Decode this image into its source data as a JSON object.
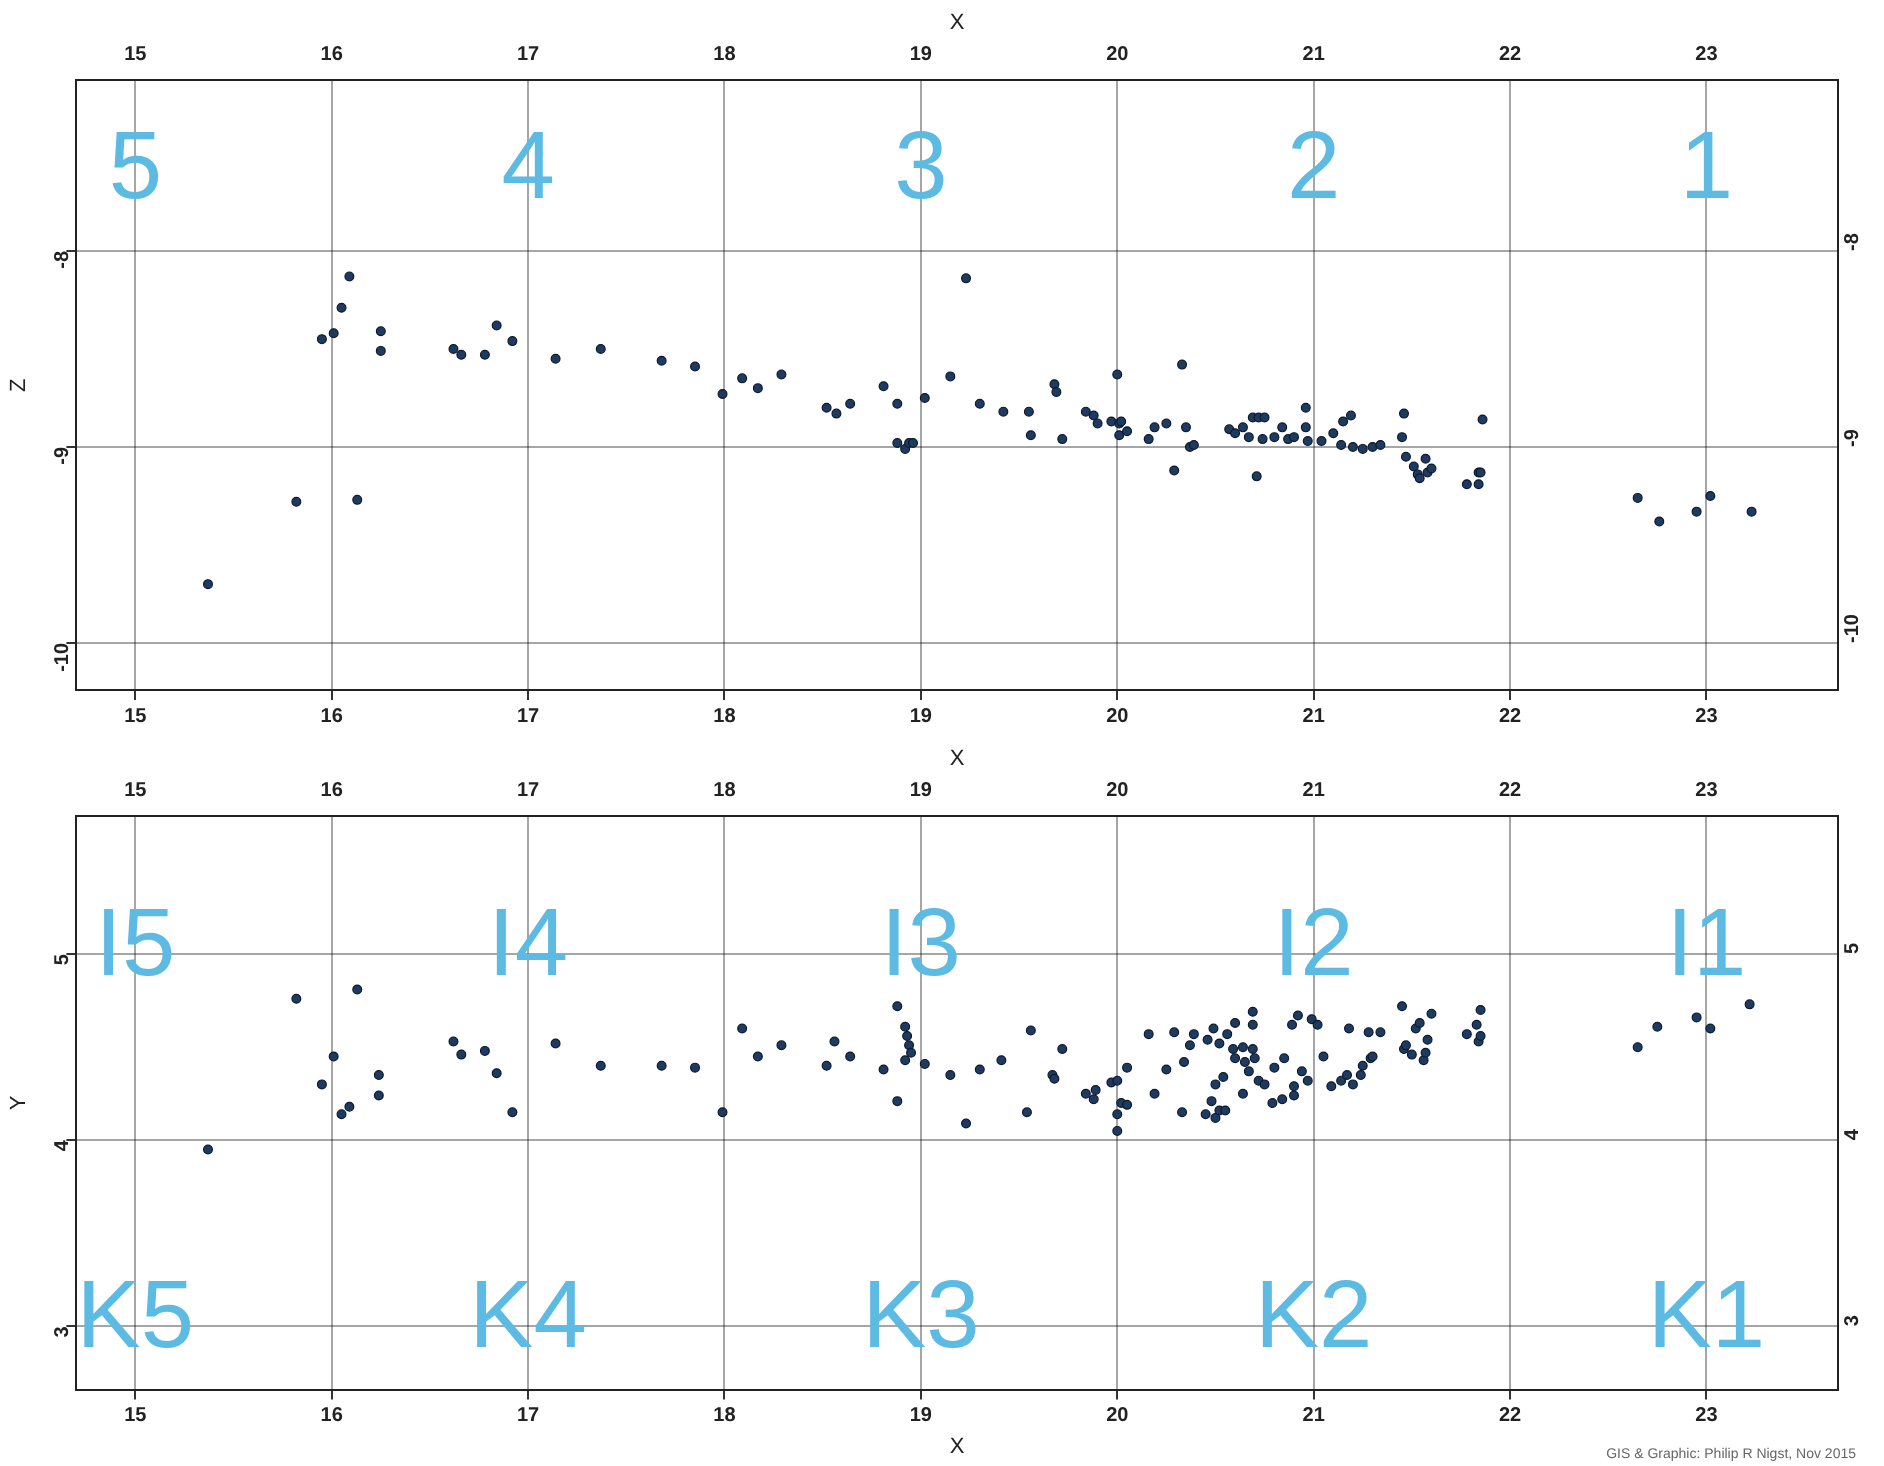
{
  "chart_data": [
    {
      "type": "scatter",
      "xlim": [
        14.7,
        23.67
      ],
      "xticks": [
        15,
        16,
        17,
        18,
        19,
        20,
        21,
        22,
        23
      ],
      "x2lim": [
        14.7,
        23.67
      ],
      "x2ticks": [
        15,
        16,
        17,
        18,
        19,
        20,
        21,
        22,
        23
      ],
      "x2label": "X",
      "ylim": [
        -10.24,
        -7.13
      ],
      "yticks": [
        -10,
        -9,
        -8
      ],
      "y2lim": [
        -10.24,
        -7.13
      ],
      "y2ticks": [
        -10,
        -9,
        -8
      ],
      "ylabel": "Z",
      "grid": true,
      "marker": "circle",
      "annotations": [
        "5",
        "4",
        "3",
        "2",
        "1"
      ],
      "series": [
        {
          "color": "#1f3a5f",
          "x": [
            16.09,
            16.05,
            15.95,
            16.01,
            16.25,
            16.25,
            16.62,
            16.66,
            16.78,
            16.84,
            16.92,
            17.14,
            17.37,
            17.68,
            17.85,
            17.99,
            18.09,
            18.17,
            18.29,
            18.52,
            18.57,
            18.64,
            18.81,
            18.88,
            19.02,
            19.15,
            19.23,
            18.88,
            18.92,
            18.94,
            18.96,
            15.82,
            16.13,
            15.37,
            19.3,
            19.42,
            19.55,
            19.56,
            19.68,
            19.69,
            19.72,
            19.84,
            19.88,
            19.9,
            19.97,
            20.0,
            20.01,
            20.02,
            20.01,
            20.05,
            20.16,
            20.19,
            20.25,
            20.29,
            20.33,
            20.35,
            20.37,
            20.39,
            20.57,
            20.6,
            20.64,
            20.67,
            20.69,
            20.72,
            20.75,
            20.71,
            20.74,
            20.8,
            20.84,
            20.87,
            20.9,
            20.96,
            20.96,
            20.97,
            21.04,
            21.1,
            21.14,
            21.15,
            21.19,
            21.2,
            21.25,
            21.3,
            21.34,
            21.46,
            21.45,
            21.47,
            21.51,
            21.53,
            21.54,
            21.57,
            21.58,
            21.6,
            21.78,
            21.84,
            21.85,
            21.84,
            21.86,
            22.65,
            22.76,
            22.95,
            23.02,
            23.23
          ],
          "values": [
            -8.13,
            -8.29,
            -8.45,
            -8.42,
            -8.41,
            -8.51,
            -8.5,
            -8.53,
            -8.53,
            -8.38,
            -8.46,
            -8.55,
            -8.5,
            -8.56,
            -8.59,
            -8.73,
            -8.65,
            -8.7,
            -8.63,
            -8.8,
            -8.83,
            -8.78,
            -8.69,
            -8.78,
            -8.75,
            -8.64,
            -8.14,
            -8.98,
            -9.01,
            -8.98,
            -8.98,
            -9.28,
            -9.27,
            -9.7,
            -8.78,
            -8.82,
            -8.82,
            -8.94,
            -8.68,
            -8.72,
            -8.96,
            -8.82,
            -8.84,
            -8.88,
            -8.87,
            -8.63,
            -8.88,
            -8.87,
            -8.94,
            -8.92,
            -8.96,
            -8.9,
            -8.88,
            -9.12,
            -8.58,
            -8.9,
            -9.0,
            -8.99,
            -8.91,
            -8.93,
            -8.9,
            -8.95,
            -8.85,
            -8.85,
            -8.85,
            -9.15,
            -8.96,
            -8.95,
            -8.9,
            -8.96,
            -8.95,
            -8.8,
            -8.9,
            -8.97,
            -8.97,
            -8.93,
            -8.99,
            -8.87,
            -8.84,
            -9.0,
            -9.01,
            -9.0,
            -8.99,
            -8.83,
            -8.95,
            -9.05,
            -9.1,
            -9.14,
            -9.16,
            -9.06,
            -9.13,
            -9.11,
            -9.19,
            -9.13,
            -9.13,
            -9.19,
            -8.86,
            -9.26,
            -9.38,
            -9.33,
            -9.25,
            -9.33
          ]
        }
      ]
    },
    {
      "type": "scatter",
      "xlim": [
        14.7,
        23.67
      ],
      "xticks": [
        15,
        16,
        17,
        18,
        19,
        20,
        21,
        22,
        23
      ],
      "x2lim": [
        14.7,
        23.67
      ],
      "x2ticks": [
        15,
        16,
        17,
        18,
        19,
        20,
        21,
        22,
        23
      ],
      "xlabel": "X",
      "x2label": "X",
      "ylim": [
        2.66,
        5.74
      ],
      "yticks": [
        3,
        4,
        5
      ],
      "y2lim": [
        2.66,
        5.74
      ],
      "y2ticks": [
        3,
        4,
        5
      ],
      "ylabel": "Y",
      "grid": true,
      "marker": "circle",
      "annotations": [
        "I5",
        "I4",
        "I3",
        "I2",
        "I1",
        "K5",
        "K4",
        "K3",
        "K2",
        "K1",
        "GIS & Graphic: Philip R Nigst, Nov 2015"
      ],
      "series": [
        {
          "color": "#1f3a5f",
          "x": [
            15.82,
            16.13,
            16.01,
            15.95,
            16.05,
            16.09,
            16.24,
            16.24,
            15.37,
            16.62,
            16.66,
            16.78,
            16.84,
            16.92,
            17.14,
            17.37,
            17.68,
            17.85,
            17.99,
            18.09,
            18.17,
            18.29,
            18.52,
            18.56,
            18.64,
            18.81,
            18.88,
            18.88,
            18.92,
            18.93,
            18.94,
            18.95,
            18.92,
            19.02,
            19.15,
            19.23,
            19.3,
            19.41,
            19.54,
            19.56,
            19.67,
            19.68,
            19.72,
            19.84,
            19.88,
            19.89,
            19.97,
            20.0,
            20.0,
            20.0,
            20.02,
            20.05,
            20.05,
            20.16,
            20.19,
            20.25,
            20.29,
            20.33,
            20.34,
            20.37,
            20.39,
            20.45,
            20.48,
            20.5,
            20.52,
            20.55,
            20.46,
            20.49,
            20.52,
            20.56,
            20.6,
            20.69,
            20.69,
            20.5,
            20.54,
            20.59,
            20.64,
            20.69,
            20.6,
            20.65,
            20.7,
            20.67,
            20.72,
            20.64,
            20.75,
            20.79,
            20.84,
            20.8,
            20.85,
            20.89,
            20.92,
            20.94,
            20.9,
            20.9,
            20.97,
            20.99,
            21.02,
            21.05,
            21.09,
            21.14,
            21.17,
            21.2,
            21.24,
            21.25,
            21.29,
            21.3,
            21.18,
            21.28,
            21.34,
            21.45,
            21.46,
            21.47,
            21.52,
            21.54,
            21.5,
            21.56,
            21.57,
            21.58,
            21.6,
            21.78,
            21.83,
            21.84,
            21.85,
            21.85,
            22.65,
            22.75,
            22.95,
            23.02,
            23.22
          ],
          "values": [
            4.76,
            4.81,
            4.45,
            4.3,
            4.14,
            4.18,
            4.35,
            4.24,
            3.95,
            4.53,
            4.46,
            4.48,
            4.36,
            4.15,
            4.52,
            4.4,
            4.4,
            4.39,
            4.15,
            4.6,
            4.45,
            4.51,
            4.4,
            4.53,
            4.45,
            4.38,
            4.72,
            4.21,
            4.61,
            4.56,
            4.51,
            4.47,
            4.43,
            4.41,
            4.35,
            4.09,
            4.38,
            4.43,
            4.15,
            4.59,
            4.35,
            4.33,
            4.49,
            4.25,
            4.22,
            4.27,
            4.31,
            4.32,
            4.14,
            4.05,
            4.2,
            4.19,
            4.39,
            4.57,
            4.25,
            4.38,
            4.58,
            4.15,
            4.42,
            4.51,
            4.57,
            4.14,
            4.21,
            4.12,
            4.16,
            4.16,
            4.54,
            4.6,
            4.52,
            4.57,
            4.63,
            4.69,
            4.62,
            4.3,
            4.34,
            4.49,
            4.5,
            4.49,
            4.44,
            4.42,
            4.44,
            4.37,
            4.32,
            4.25,
            4.3,
            4.2,
            4.22,
            4.39,
            4.44,
            4.62,
            4.67,
            4.37,
            4.29,
            4.24,
            4.32,
            4.65,
            4.62,
            4.45,
            4.29,
            4.32,
            4.35,
            4.3,
            4.35,
            4.4,
            4.44,
            4.45,
            4.6,
            4.58,
            4.58,
            4.72,
            4.49,
            4.51,
            4.6,
            4.63,
            4.46,
            4.43,
            4.47,
            4.54,
            4.68,
            4.57,
            4.62,
            4.53,
            4.56,
            4.7,
            4.5,
            4.61,
            4.66,
            4.6,
            4.73
          ]
        }
      ]
    }
  ]
}
